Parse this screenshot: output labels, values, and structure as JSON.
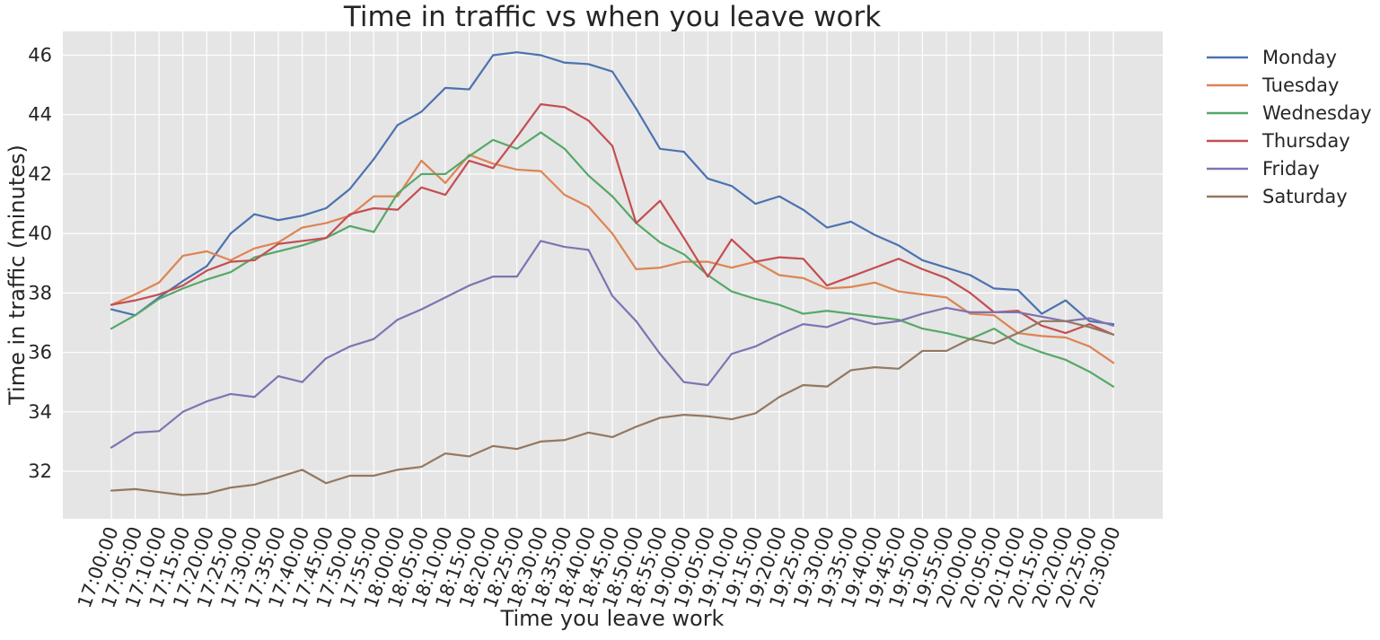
{
  "chart_data": {
    "type": "line",
    "title": "Time in traffic vs when you leave work",
    "xlabel": "Time you leave work",
    "ylabel": "Time in traffic (minutes)",
    "x": [
      "17:00:00",
      "17:05:00",
      "17:10:00",
      "17:15:00",
      "17:20:00",
      "17:25:00",
      "17:30:00",
      "17:35:00",
      "17:40:00",
      "17:45:00",
      "17:50:00",
      "17:55:00",
      "18:00:00",
      "18:05:00",
      "18:10:00",
      "18:15:00",
      "18:20:00",
      "18:25:00",
      "18:30:00",
      "18:35:00",
      "18:40:00",
      "18:45:00",
      "18:50:00",
      "18:55:00",
      "19:00:00",
      "19:05:00",
      "19:10:00",
      "19:15:00",
      "19:20:00",
      "19:25:00",
      "19:30:00",
      "19:35:00",
      "19:40:00",
      "19:45:00",
      "19:50:00",
      "19:55:00",
      "20:00:00",
      "20:05:00",
      "20:10:00",
      "20:15:00",
      "20:20:00",
      "20:25:00",
      "20:30:00"
    ],
    "ylim": [
      30.4,
      46.8
    ],
    "yticks": [
      32,
      34,
      36,
      38,
      40,
      42,
      44,
      46
    ],
    "grid": true,
    "legend_position": "outside-top-right",
    "series": [
      {
        "name": "Monday",
        "color": "#4c72b0",
        "values": [
          37.45,
          37.25,
          37.85,
          38.4,
          38.9,
          40.0,
          40.65,
          40.45,
          40.6,
          40.85,
          41.5,
          42.5,
          43.65,
          44.1,
          44.9,
          44.85,
          46.0,
          46.1,
          46.0,
          45.75,
          45.7,
          45.45,
          44.2,
          42.85,
          42.75,
          41.85,
          41.6,
          41.0,
          41.25,
          40.8,
          40.2,
          40.4,
          39.95,
          39.6,
          39.1,
          38.85,
          38.6,
          38.15,
          38.1,
          37.3,
          37.75,
          37.05,
          36.95
        ]
      },
      {
        "name": "Tuesday",
        "color": "#dd8452",
        "values": [
          37.6,
          37.95,
          38.35,
          39.25,
          39.4,
          39.1,
          39.5,
          39.7,
          40.2,
          40.35,
          40.6,
          41.25,
          41.25,
          42.45,
          41.7,
          42.65,
          42.35,
          42.15,
          42.1,
          41.3,
          40.9,
          40.0,
          38.8,
          38.85,
          39.05,
          39.05,
          38.85,
          39.05,
          38.6,
          38.5,
          38.15,
          38.2,
          38.35,
          38.05,
          37.95,
          37.85,
          37.3,
          37.25,
          36.65,
          36.55,
          36.5,
          36.2,
          35.65
        ]
      },
      {
        "name": "Wednesday",
        "color": "#55a868",
        "values": [
          36.8,
          37.25,
          37.8,
          38.15,
          38.45,
          38.7,
          39.2,
          39.4,
          39.6,
          39.85,
          40.25,
          40.05,
          41.35,
          42.0,
          42.0,
          42.6,
          43.15,
          42.85,
          43.4,
          42.85,
          41.95,
          41.25,
          40.35,
          39.7,
          39.3,
          38.6,
          38.05,
          37.8,
          37.6,
          37.3,
          37.4,
          37.3,
          37.2,
          37.1,
          36.8,
          36.65,
          36.45,
          36.8,
          36.3,
          36.0,
          35.75,
          35.35,
          34.85
        ]
      },
      {
        "name": "Thursday",
        "color": "#c44e52",
        "values": [
          37.6,
          37.75,
          37.95,
          38.25,
          38.75,
          39.05,
          39.1,
          39.65,
          39.75,
          39.85,
          40.65,
          40.85,
          40.8,
          41.55,
          41.3,
          42.45,
          42.2,
          43.25,
          44.35,
          44.25,
          43.8,
          42.95,
          40.35,
          41.1,
          39.85,
          38.55,
          39.8,
          39.05,
          39.2,
          39.15,
          38.25,
          38.55,
          38.85,
          39.15,
          38.8,
          38.5,
          38.0,
          37.35,
          37.4,
          36.9,
          36.65,
          36.95,
          36.6
        ]
      },
      {
        "name": "Friday",
        "color": "#8172b3",
        "values": [
          32.8,
          33.3,
          33.35,
          34.0,
          34.35,
          34.6,
          34.5,
          35.2,
          35.0,
          35.8,
          36.2,
          36.45,
          37.1,
          37.45,
          37.85,
          38.25,
          38.55,
          38.55,
          39.75,
          39.55,
          39.45,
          37.9,
          37.05,
          35.95,
          35.0,
          34.9,
          35.95,
          36.2,
          36.6,
          36.95,
          36.85,
          37.15,
          36.95,
          37.05,
          37.3,
          37.5,
          37.35,
          37.35,
          37.35,
          37.2,
          37.05,
          37.15,
          36.9
        ]
      },
      {
        "name": "Saturday",
        "color": "#937860",
        "values": [
          31.35,
          31.4,
          31.3,
          31.2,
          31.25,
          31.45,
          31.55,
          31.8,
          32.05,
          31.6,
          31.85,
          31.85,
          32.05,
          32.15,
          32.6,
          32.5,
          32.85,
          32.75,
          33.0,
          33.05,
          33.3,
          33.15,
          33.5,
          33.8,
          33.9,
          33.85,
          33.75,
          33.95,
          34.5,
          34.9,
          34.85,
          35.4,
          35.5,
          35.45,
          36.05,
          36.05,
          36.45,
          36.3,
          36.65,
          37.05,
          37.05,
          36.85,
          36.6
        ]
      }
    ]
  }
}
